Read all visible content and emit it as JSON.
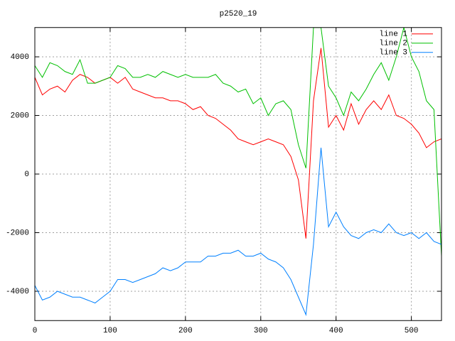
{
  "chart_data": {
    "type": "line",
    "title": "p2520_19",
    "x": [
      0,
      10,
      20,
      30,
      40,
      50,
      60,
      70,
      80,
      90,
      100,
      110,
      120,
      130,
      140,
      150,
      160,
      170,
      180,
      190,
      200,
      210,
      220,
      230,
      240,
      250,
      260,
      270,
      280,
      290,
      300,
      310,
      320,
      330,
      340,
      350,
      360,
      370,
      380,
      390,
      400,
      410,
      420,
      430,
      440,
      450,
      460,
      470,
      480,
      490,
      500,
      510,
      520,
      530,
      540
    ],
    "series": [
      {
        "name": "line 1",
        "color": "#ff0000",
        "values": [
          3300,
          2700,
          2900,
          3000,
          2800,
          3200,
          3400,
          3300,
          3100,
          3200,
          3300,
          3100,
          3300,
          2900,
          2800,
          2700,
          2600,
          2600,
          2500,
          2500,
          2400,
          2200,
          2300,
          2000,
          1900,
          1700,
          1500,
          1200,
          1100,
          1000,
          1100,
          1200,
          1100,
          1000,
          600,
          -200,
          -2200,
          2500,
          4300,
          1600,
          2000,
          1500,
          2400,
          1700,
          2200,
          2500,
          2200,
          2700,
          2000,
          1900,
          1700,
          1400,
          900,
          1100,
          1200
        ]
      },
      {
        "name": "line 2",
        "color": "#00c000",
        "values": [
          3700,
          3300,
          3800,
          3700,
          3500,
          3400,
          3900,
          3100,
          3100,
          3200,
          3300,
          3700,
          3600,
          3300,
          3300,
          3400,
          3300,
          3500,
          3400,
          3300,
          3400,
          3300,
          3300,
          3300,
          3400,
          3100,
          3000,
          2800,
          2900,
          2400,
          2600,
          2000,
          2400,
          2500,
          2200,
          1000,
          200,
          5000,
          5000,
          3000,
          2600,
          2000,
          2800,
          2500,
          2900,
          3400,
          3800,
          3200,
          4000,
          5000,
          4000,
          3500,
          2500,
          2200,
          -2800
        ]
      },
      {
        "name": "line 3",
        "color": "#0080ff",
        "values": [
          -3800,
          -4300,
          -4200,
          -4000,
          -4100,
          -4200,
          -4200,
          -4300,
          -4400,
          -4200,
          -4000,
          -3600,
          -3600,
          -3700,
          -3600,
          -3500,
          -3400,
          -3200,
          -3300,
          -3200,
          -3000,
          -3000,
          -3000,
          -2800,
          -2800,
          -2700,
          -2700,
          -2600,
          -2800,
          -2800,
          -2700,
          -2900,
          -3000,
          -3200,
          -3600,
          -4200,
          -4800,
          -2400,
          900,
          -1800,
          -1300,
          -1800,
          -2100,
          -2200,
          -2000,
          -1900,
          -2000,
          -1700,
          -2000,
          -2100,
          -2000,
          -2200,
          -2000,
          -2300,
          -2400
        ]
      }
    ],
    "xlim": [
      0,
      540
    ],
    "xticks": [
      0,
      100,
      200,
      300,
      400,
      500
    ],
    "ylim": [
      -5000,
      5000
    ],
    "yticks": [
      -4000,
      -2000,
      0,
      2000,
      4000
    ],
    "grid": true,
    "legend": "top-right"
  }
}
